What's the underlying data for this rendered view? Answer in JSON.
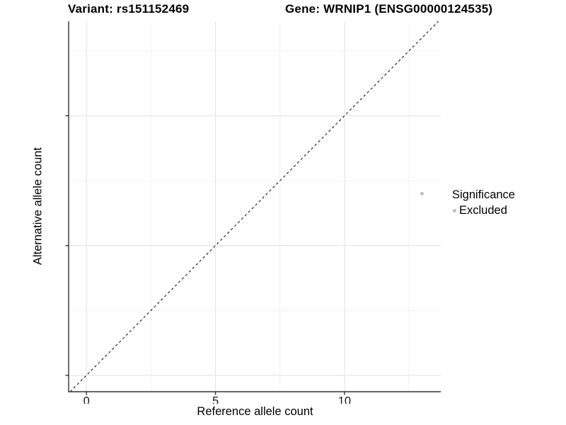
{
  "titles": {
    "variant": "Variant: rs151152469",
    "gene": "Gene: WRNIP1 (ENSG00000124535)"
  },
  "axis_titles": {
    "x": "Reference allele count",
    "y": "Alternative allele count"
  },
  "legend": {
    "title": "Significance",
    "items": [
      {
        "label": "Excluded",
        "color": "#bdbdbd"
      }
    ]
  },
  "colors": {
    "grid_major": "#e4e4e4",
    "grid_minor": "#f0f0f0",
    "axis_line": "#333333",
    "tick_text": "#1a1a1a",
    "reference_line": "#000000"
  },
  "chart_data": {
    "type": "scatter",
    "title": "Variant: rs151152469 — Gene: WRNIP1 (ENSG00000124535)",
    "xlabel": "Reference allele count",
    "ylabel": "Alternative allele count",
    "xlim": [
      -0.69,
      13.73
    ],
    "ylim": [
      -0.63,
      13.64
    ],
    "x_ticks": [
      0,
      5,
      10
    ],
    "y_ticks": [
      0,
      5,
      10
    ],
    "x_minor": [
      2.5,
      7.5,
      12.5
    ],
    "y_minor": [
      2.5,
      7.5,
      12.5
    ],
    "grid": "major+minor",
    "legend_position": "right",
    "series": [
      {
        "name": "Excluded",
        "color": "#bdbdbd",
        "marker_radius": 2.5,
        "points": [
          [
            13,
            7
          ]
        ]
      }
    ],
    "reference_line": {
      "slope": 1,
      "intercept": 0,
      "style": "dashed"
    }
  }
}
